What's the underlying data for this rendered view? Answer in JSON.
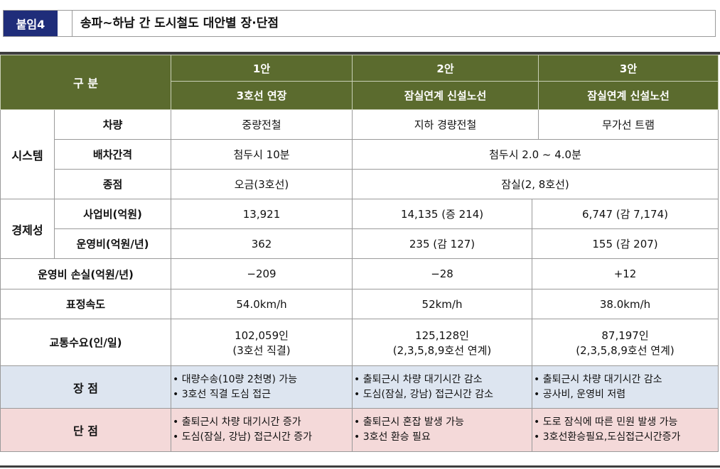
{
  "header": {
    "tag": "붙임4",
    "title": "송파~하남 간 도시철도 대안별 장·단점"
  },
  "table": {
    "head_label": "구  분",
    "options": [
      {
        "name": "1안",
        "desc": "3호선 연장"
      },
      {
        "name": "2안",
        "desc": "잠실연계 신설노선"
      },
      {
        "name": "3안",
        "desc": "잠실연계 신설노선"
      }
    ],
    "system": {
      "group": "시스템",
      "vehicle": {
        "label": "차량",
        "v1": "중량전철",
        "v2": "지하 경량전철",
        "v3": "무가선 트램"
      },
      "headway": {
        "label": "배차간격",
        "v1": "첨두시 10분",
        "v23": "첨두시 2.0 ~ 4.0분"
      },
      "terminal": {
        "label": "종점",
        "v1": "오금(3호선)",
        "v23": "잠실(2, 8호선)"
      }
    },
    "economy": {
      "group": "경제성",
      "cost": {
        "label": "사업비(억원)",
        "v1": "13,921",
        "v2": "14,135 (증 214)",
        "v3": "6,747 (감 7,174)"
      },
      "opcost": {
        "label": "운영비(억원/년)",
        "v1": "362",
        "v2": "235 (감 127)",
        "v3": "155 (감 207)"
      }
    },
    "oploss": {
      "label": "운영비 손실(억원/년)",
      "v1": "−209",
      "v2": "−28",
      "v3": "+12"
    },
    "speed": {
      "label": "표정속도",
      "v1": "54.0km/h",
      "v2": "52km/h",
      "v3": "38.0km/h"
    },
    "demand": {
      "label": "교통수요(인/일)",
      "v1a": "102,059인",
      "v1b": "(3호선 직결)",
      "v2a": "125,128인",
      "v2b": "(2,3,5,8,9호선 연계)",
      "v3a": "87,197인",
      "v3b": "(2,3,5,8,9호선 연계)"
    },
    "pros": {
      "label": "장 점",
      "o1": [
        "• 대량수송(10량 2천명) 가능",
        "• 3호선 직결 도심 접근"
      ],
      "o2": [
        "• 출퇴근시 차량 대기시간 감소",
        "• 도심(잠실, 강남) 접근시간 감소"
      ],
      "o3": [
        "• 출퇴근시 차량 대기시간 감소",
        "• 공사비, 운영비 저렴"
      ]
    },
    "cons": {
      "label": "단 점",
      "o1": [
        "• 출퇴근시 차량 대기시간 증가",
        "• 도심(잠실, 강남) 접근시간 증가"
      ],
      "o2": [
        "• 출퇴근시 혼잡 발생 가능",
        "• 3호선 환승 필요"
      ],
      "o3": [
        "• 도로 잠식에 따른 민원 발생 가능",
        "• 3호선환승필요,도심접근시간증가"
      ]
    }
  }
}
